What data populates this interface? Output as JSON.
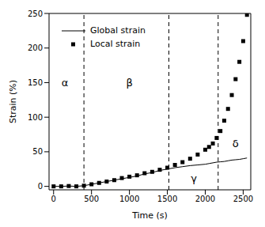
{
  "chart_data": {
    "type": "line",
    "x_label": "Time (s)",
    "y_label": "Strain (%)",
    "x": [
      0,
      100,
      200,
      300,
      400,
      500,
      600,
      700,
      800,
      900,
      1000,
      1100,
      1200,
      1300,
      1400,
      1500,
      1600,
      1700,
      1800,
      1900,
      2000,
      2050,
      2100,
      2150,
      2200,
      2250,
      2300,
      2350,
      2400,
      2450,
      2500,
      2550
    ],
    "series": [
      {
        "name": "Global strain",
        "color": "#000000",
        "line_style": "solid",
        "marker": "none",
        "values": [
          0,
          0,
          0.5,
          0,
          1,
          3,
          5,
          7,
          9,
          11,
          13,
          15,
          18,
          20,
          23,
          25,
          27,
          28.5,
          30,
          31,
          32,
          33,
          34,
          35,
          35.5,
          36,
          37,
          38,
          38.5,
          39,
          40,
          41
        ]
      },
      {
        "name": "Local strain",
        "color": "#000000",
        "line_style": "none",
        "marker": "square",
        "values": [
          0,
          0,
          0.5,
          0,
          1,
          3,
          5,
          7,
          9,
          12,
          14,
          16,
          19,
          21,
          24,
          27,
          31,
          35,
          40,
          46,
          53,
          57,
          62,
          70,
          80,
          95,
          112,
          132,
          155,
          180,
          210,
          248
        ]
      }
    ],
    "xlim": [
      -60,
      2600
    ],
    "ylim": [
      -5,
      250
    ],
    "xticks": [
      0,
      500,
      1000,
      1500,
      2000,
      2500
    ],
    "yticks": [
      0,
      50,
      100,
      150,
      200,
      250
    ],
    "vertical_lines": [
      400,
      1520,
      2170
    ],
    "annotations": [
      {
        "text": "α",
        "x": 150,
        "y": 150
      },
      {
        "text": "β",
        "x": 1000,
        "y": 150
      },
      {
        "text": "γ",
        "x": 1850,
        "y": 12
      },
      {
        "text": "δ",
        "x": 2400,
        "y": 62
      }
    ],
    "grid": false,
    "legend": "upper left"
  }
}
